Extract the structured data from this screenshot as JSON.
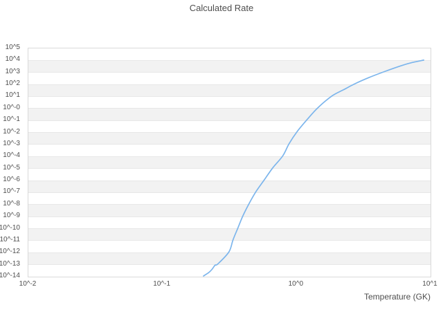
{
  "title": "Calculated Rate",
  "chart_data": {
    "type": "line",
    "title": "Calculated Rate",
    "xlabel": "Temperature (GK)",
    "ylabel": "",
    "x_scale": "log10",
    "y_scale": "log10",
    "xlim_log10": [
      -2,
      1
    ],
    "ylim_log10": [
      -14,
      5
    ],
    "x_tick_labels": [
      "10^-2",
      "10^-1",
      "10^0",
      "10^1"
    ],
    "y_tick_labels": [
      "10^5",
      "10^4",
      "10^3",
      "10^2",
      "10^1",
      "10^-0",
      "10^-1",
      "10^-2",
      "10^-3",
      "10^-4",
      "10^-5",
      "10^-6",
      "10^-7",
      "10^-8",
      "10^-9",
      "10^-10",
      "10^-11",
      "10^-12",
      "10^-13",
      "10^-14"
    ],
    "grid": "horizontal-only",
    "alternating_bands": true,
    "legend_position": "none",
    "series": [
      {
        "name": "calculated-rate",
        "color": "#7cb5ec",
        "points_T_log10rate": [
          [
            0.205,
            -14.0
          ],
          [
            0.225,
            -13.7
          ],
          [
            0.237,
            -13.45
          ],
          [
            0.25,
            -13.1
          ],
          [
            0.262,
            -13.0
          ],
          [
            0.317,
            -12.0
          ],
          [
            0.34,
            -11.0
          ],
          [
            0.37,
            -10.0
          ],
          [
            0.403,
            -9.0
          ],
          [
            0.447,
            -8.0
          ],
          [
            0.503,
            -7.0
          ],
          [
            0.582,
            -6.0
          ],
          [
            0.673,
            -5.0
          ],
          [
            0.8,
            -4.0
          ],
          [
            0.89,
            -3.0
          ],
          [
            1.02,
            -2.0
          ],
          [
            1.21,
            -1.0
          ],
          [
            1.46,
            0.0
          ],
          [
            1.87,
            1.0
          ],
          [
            2.27,
            1.5
          ],
          [
            2.76,
            2.0
          ],
          [
            3.48,
            2.5
          ],
          [
            4.55,
            3.0
          ],
          [
            6.1,
            3.5
          ],
          [
            7.4,
            3.77
          ],
          [
            9.0,
            3.97
          ]
        ]
      }
    ],
    "colors": {
      "line": "#7cb5ec",
      "band": "#f2f2f2",
      "gridline": "#e7e7e7",
      "border": "#d9d9d9",
      "text": "#4d4d4d",
      "background": "#ffffff"
    }
  }
}
